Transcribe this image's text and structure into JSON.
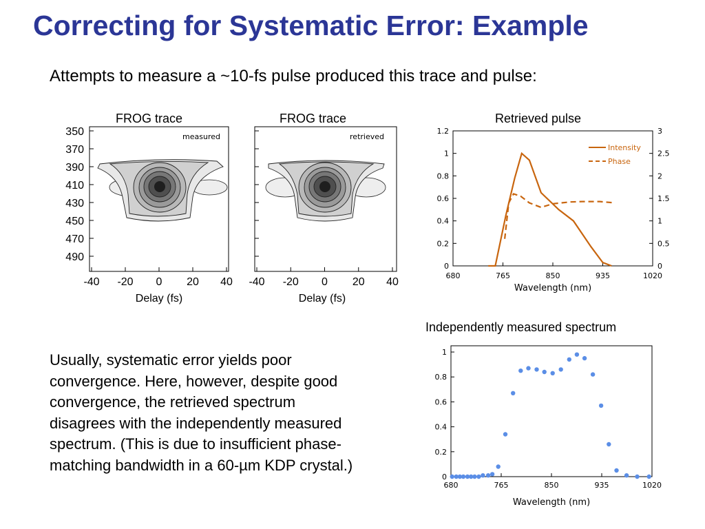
{
  "slide": {
    "title": "Correcting for Systematic Error: Example",
    "subtitle": "Attempts to measure a ~10-fs pulse produced this trace and pulse:",
    "body_lines": [
      "Usually, systematic error yields poor",
      "convergence.  Here, however, despite good",
      "convergence, the retrieved spectrum",
      "disagrees with the independently measured",
      "spectrum.  (This is due to insufficient phase-",
      "matching bandwidth in a 60-µm KDP crystal.)"
    ]
  },
  "colors": {
    "title": "#2b3696",
    "intensity": "#c8650e",
    "spectrum": "#5b8ee6"
  },
  "chart_data": [
    {
      "type": "heatmap",
      "title": "FROG trace",
      "annotation": "measured",
      "xlabel": "Delay (fs)",
      "x_ticks": [
        "-40",
        "-20",
        "0",
        "20",
        "40"
      ],
      "y_ticks": [
        "350",
        "370",
        "390",
        "410",
        "430",
        "450",
        "470",
        "490"
      ]
    },
    {
      "type": "heatmap",
      "title": "FROG trace",
      "annotation": "retrieved",
      "xlabel": "Delay (fs)",
      "x_ticks": [
        "-40",
        "-20",
        "0",
        "20",
        "40"
      ]
    },
    {
      "type": "line",
      "title": "Retrieved pulse",
      "xlabel": "Wavelength (nm)",
      "xlim": [
        680,
        1020
      ],
      "x_ticks": [
        "680",
        "765",
        "850",
        "935",
        "1020"
      ],
      "ylim": [
        0,
        1.2
      ],
      "y_ticks": [
        "0",
        "0.2",
        "0.4",
        "0.6",
        "0.8",
        "1",
        "1.2"
      ],
      "y2lim": [
        0,
        3
      ],
      "y2_ticks": [
        "0",
        "0.5",
        "1",
        "1.5",
        "2",
        "2.5",
        "3"
      ],
      "legend_position": "top-right",
      "series": [
        {
          "name": "Intensity",
          "axis": "left",
          "x": [
            740,
            752,
            770,
            785,
            797,
            810,
            830,
            860,
            885,
            915,
            935,
            950
          ],
          "y": [
            0.0,
            0.0,
            0.45,
            0.78,
            1.0,
            0.94,
            0.65,
            0.5,
            0.4,
            0.17,
            0.03,
            0.0
          ]
        },
        {
          "name": "Phase",
          "axis": "right",
          "x": [
            768,
            775,
            783,
            795,
            810,
            830,
            850,
            880,
            900,
            930,
            955
          ],
          "y": [
            0.6,
            1.4,
            1.6,
            1.55,
            1.4,
            1.3,
            1.38,
            1.42,
            1.43,
            1.43,
            1.4
          ]
        }
      ]
    },
    {
      "type": "scatter",
      "title": "Independently measured spectrum",
      "xlabel": "Wavelength (nm)",
      "xlim": [
        680,
        1020
      ],
      "x_ticks": [
        "680",
        "765",
        "850",
        "935",
        "1020"
      ],
      "ylim": [
        0,
        1.05
      ],
      "y_ticks": [
        "0",
        "0.2",
        "0.4",
        "0.6",
        "0.8",
        "1"
      ],
      "series": [
        {
          "x": [
            682,
            689,
            695,
            701,
            708,
            714,
            720,
            727,
            734,
            743,
            750,
            760,
            772,
            785,
            798,
            811,
            825,
            838,
            852,
            866,
            880,
            893,
            906,
            920,
            934,
            947,
            960,
            977,
            995,
            1015
          ],
          "y": [
            0.0,
            0.0,
            0.0,
            0.0,
            0.0,
            0.0,
            0.0,
            0.0,
            0.01,
            0.01,
            0.02,
            0.08,
            0.34,
            0.67,
            0.85,
            0.87,
            0.86,
            0.84,
            0.83,
            0.86,
            0.94,
            0.98,
            0.95,
            0.82,
            0.57,
            0.26,
            0.05,
            0.01,
            0.0,
            0.0
          ]
        }
      ]
    }
  ]
}
